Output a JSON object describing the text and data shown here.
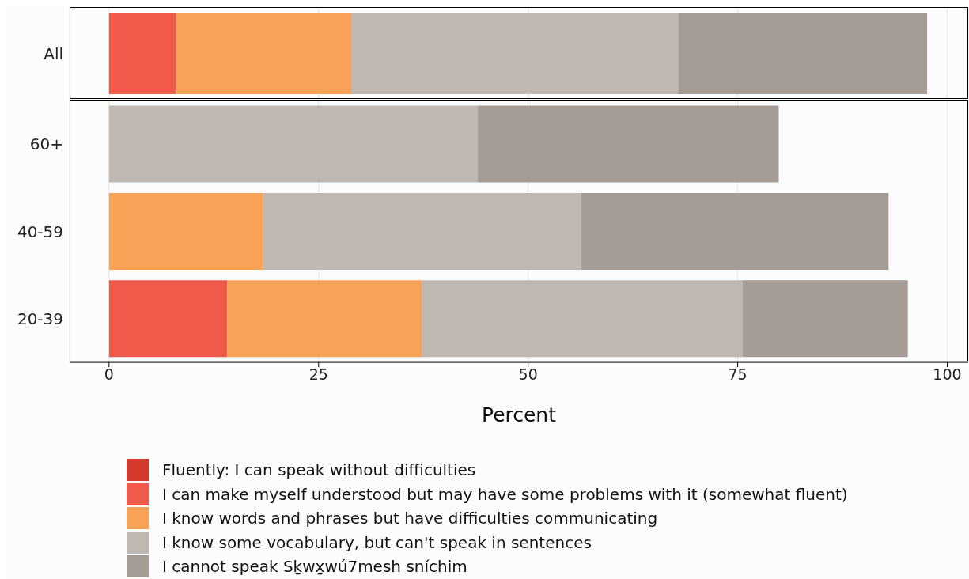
{
  "chart_data": [
    {
      "type": "bar",
      "orientation": "horizontal",
      "stacked": true,
      "categories": [
        "All"
      ],
      "xlim": [
        -4.7,
        102.5
      ],
      "xticks": [
        0,
        25,
        50,
        75,
        100
      ],
      "grid": "x",
      "tick_labels": "y",
      "legend": false,
      "series": [
        {
          "color": "#d33a2b",
          "values": [
            0
          ]
        },
        {
          "color": "#f05a4a",
          "values": [
            8.0
          ]
        },
        {
          "color": "#f8a257",
          "values": [
            20.9
          ]
        },
        {
          "color": "#bfb7b1",
          "values": [
            39.0
          ]
        },
        {
          "color": "#a59c96",
          "values": [
            29.7
          ]
        }
      ]
    },
    {
      "type": "bar",
      "orientation": "horizontal",
      "stacked": true,
      "categories": [
        "60+",
        "40-59",
        "20-39"
      ],
      "xlim": [
        -4.7,
        102.5
      ],
      "xticks": [
        0,
        25,
        50,
        75,
        100
      ],
      "xlabel": "Percent",
      "grid": "x",
      "legend": "bottom",
      "series": [
        {
          "name": "Fluently: I can speak without difficulties",
          "color": "#d33a2b",
          "values": [
            0,
            0,
            0
          ]
        },
        {
          "name": "I can make myself understood but may have some problems with it (somewhat fluent)",
          "color": "#f05a4a",
          "values": [
            0,
            0,
            14.1
          ]
        },
        {
          "name": "I know words and phrases but have difficulties communicating",
          "color": "#f8a257",
          "values": [
            0,
            18.4,
            23.2
          ]
        },
        {
          "name": "I know some vocabulary, but can't speak in sentences",
          "color": "#bfb7b1",
          "values": [
            44.0,
            37.9,
            38.3
          ]
        },
        {
          "name": "I cannot speak Sḵwx̱wú7mesh sníchim",
          "color": "#a59c96",
          "values": [
            35.9,
            36.7,
            19.7
          ]
        }
      ]
    }
  ]
}
